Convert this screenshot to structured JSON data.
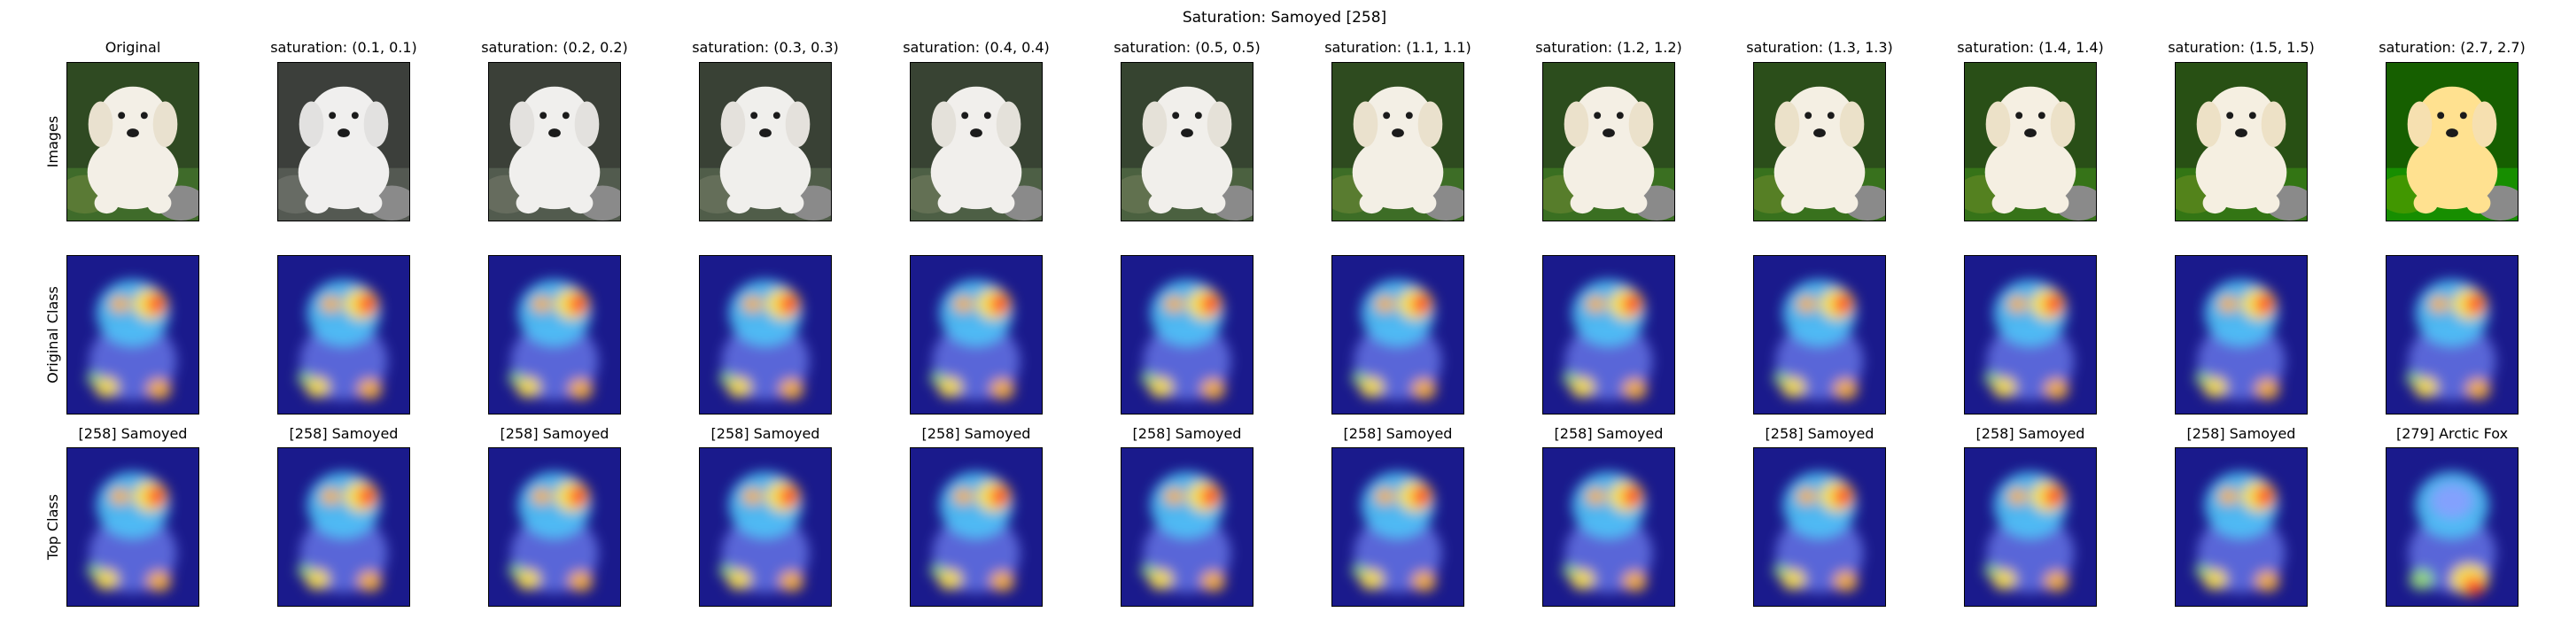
{
  "figure": {
    "title": "Saturation: Samoyed [258]",
    "row_labels": [
      "Images",
      "Original Class",
      "Top Class"
    ],
    "columns": [
      {
        "title": "Original",
        "top_class": "[258] Samoyed",
        "saturation": 1.0
      },
      {
        "title": "saturation: (0.1, 0.1)",
        "top_class": "[258] Samoyed",
        "saturation": 0.1
      },
      {
        "title": "saturation: (0.2, 0.2)",
        "top_class": "[258] Samoyed",
        "saturation": 0.2
      },
      {
        "title": "saturation: (0.3, 0.3)",
        "top_class": "[258] Samoyed",
        "saturation": 0.3
      },
      {
        "title": "saturation: (0.4, 0.4)",
        "top_class": "[258] Samoyed",
        "saturation": 0.4
      },
      {
        "title": "saturation: (0.5, 0.5)",
        "top_class": "[258] Samoyed",
        "saturation": 0.5
      },
      {
        "title": "saturation: (1.1, 1.1)",
        "top_class": "[258] Samoyed",
        "saturation": 1.1
      },
      {
        "title": "saturation: (1.2, 1.2)",
        "top_class": "[258] Samoyed",
        "saturation": 1.2
      },
      {
        "title": "saturation: (1.3, 1.3)",
        "top_class": "[258] Samoyed",
        "saturation": 1.3
      },
      {
        "title": "saturation: (1.4, 1.4)",
        "top_class": "[258] Samoyed",
        "saturation": 1.4
      },
      {
        "title": "saturation: (1.5, 1.5)",
        "top_class": "[258] Samoyed",
        "saturation": 1.5
      },
      {
        "title": "saturation: (2.7, 2.7)",
        "top_class": "[279] Arctic Fox",
        "saturation": 2.7
      }
    ],
    "colors": {
      "heatmap_low": "#1a1a8c",
      "heatmap_mid": "#4fc3f7",
      "heatmap_high": "#ff3b1f",
      "fur": "#f3efe6",
      "grass": "#3f6b2a"
    }
  }
}
